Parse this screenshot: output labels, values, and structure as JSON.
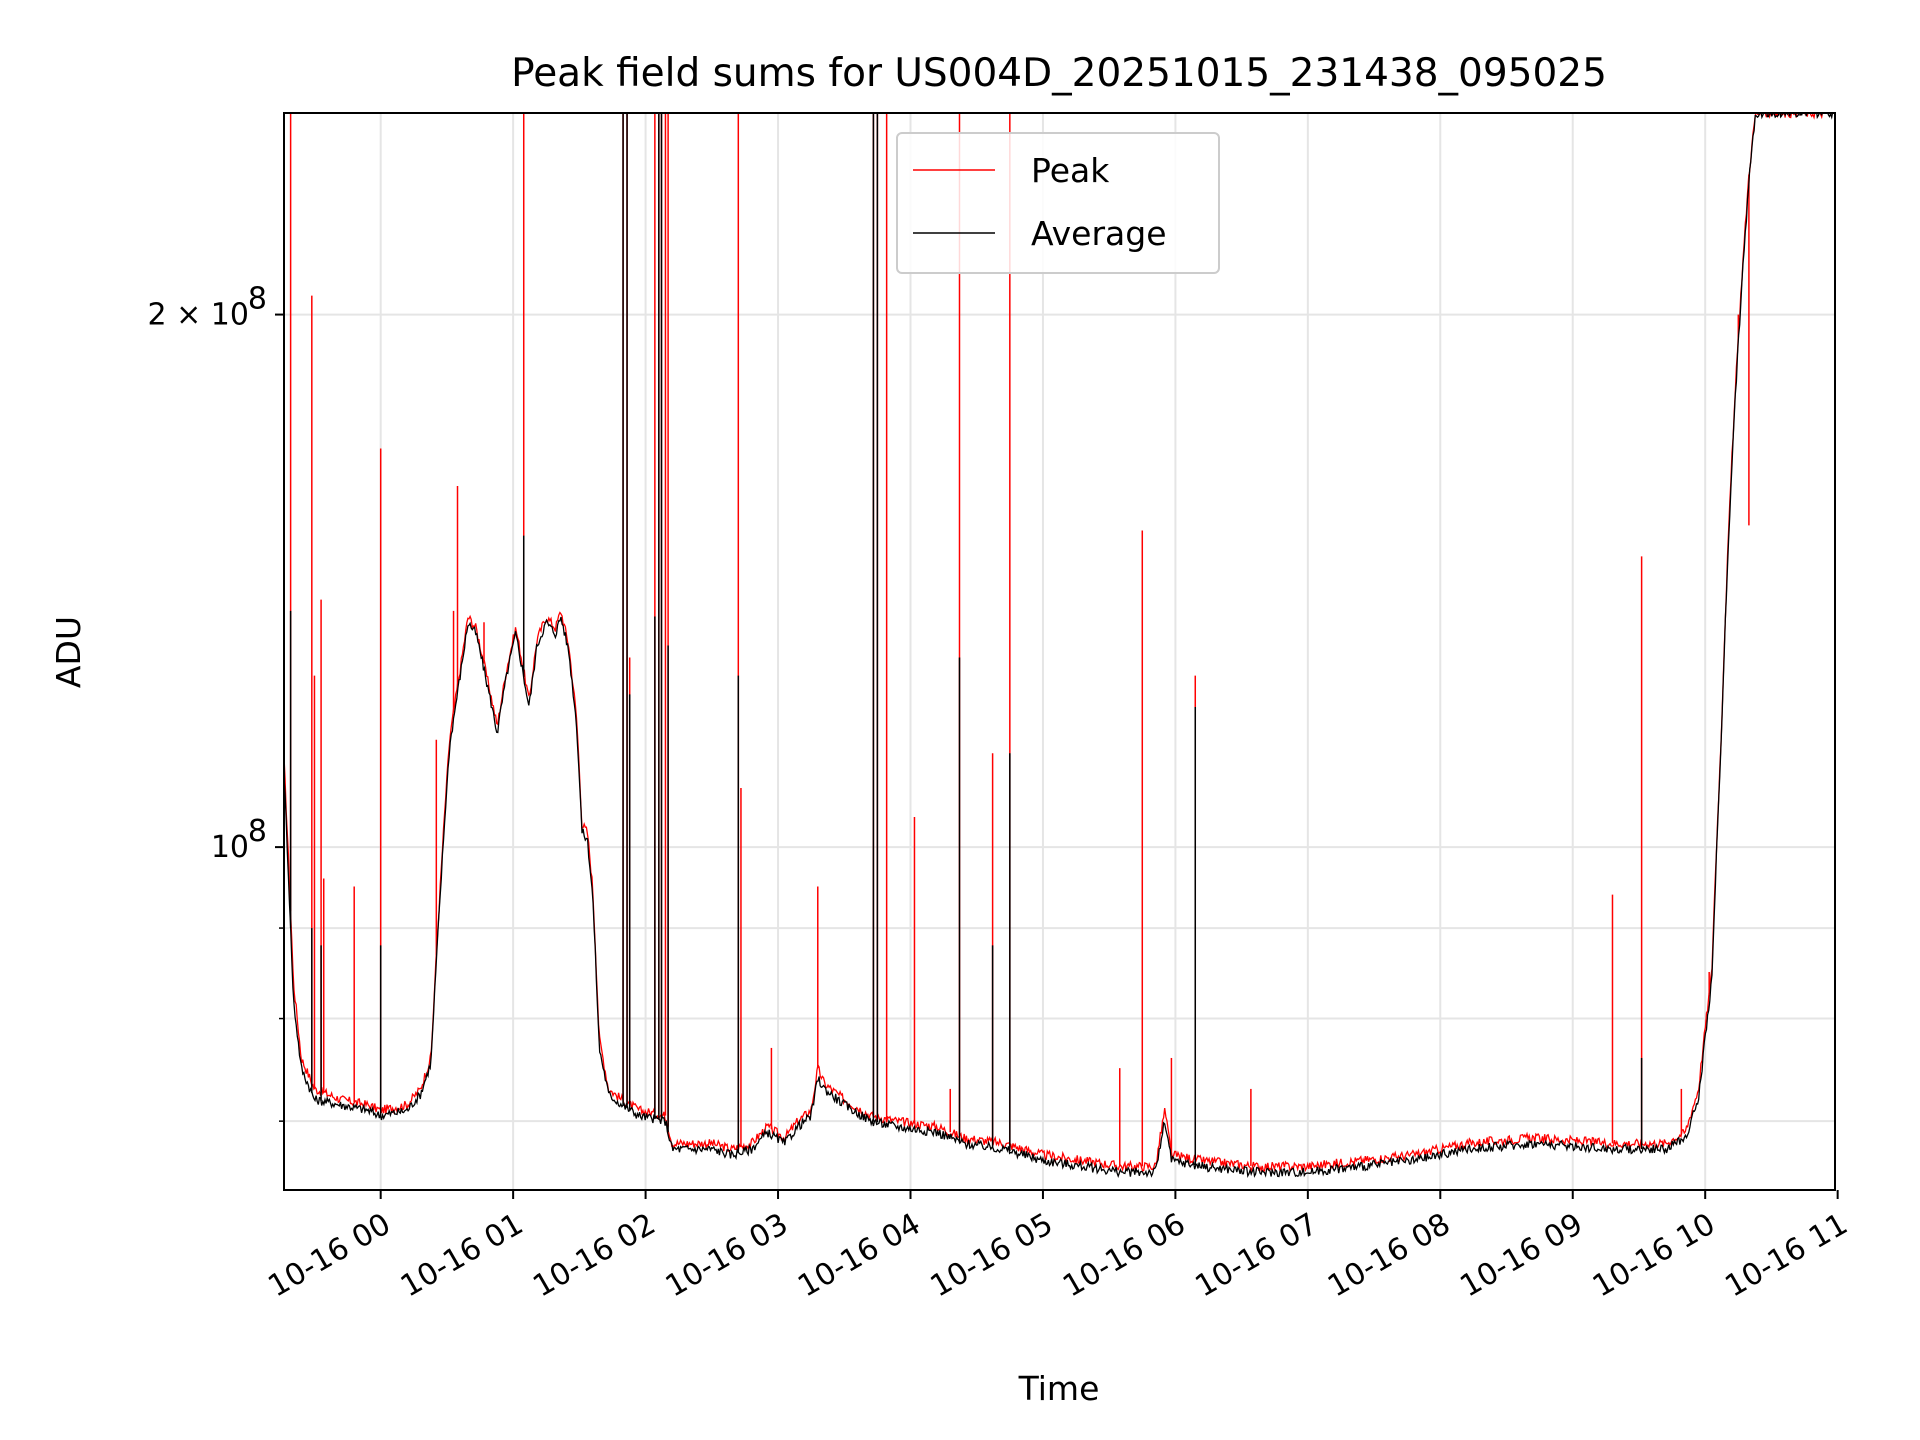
{
  "chart_data": {
    "type": "line",
    "title": "Peak field sums for US004D_20251015_231438_095025",
    "xlabel": "Time",
    "ylabel": "ADU",
    "yscale": "log",
    "grid": true,
    "legend_position": "top-center",
    "x_unit": "hours since 10-16 00:00",
    "xlim": [
      -0.73,
      10.98
    ],
    "ylim": [
      64000000,
      260000000
    ],
    "x_ticks": [
      0,
      1,
      2,
      3,
      4,
      5,
      6,
      7,
      8,
      9,
      10,
      11
    ],
    "x_tick_labels": [
      "10-16 00",
      "10-16 01",
      "10-16 02",
      "10-16 03",
      "10-16 04",
      "10-16 05",
      "10-16 06",
      "10-16 07",
      "10-16 08",
      "10-16 09",
      "10-16 10",
      "10-16 11"
    ],
    "y_major_ticks": [
      100000000,
      200000000
    ],
    "y_major_labels": [
      "10",
      "2 × 10"
    ],
    "y_major_exponent": "8",
    "y_minor_ticks": [
      70000000,
      80000000,
      90000000
    ],
    "series": [
      {
        "name": "Peak",
        "color": "#ff0000",
        "baseline": [
          [
            -0.73,
            112000000
          ],
          [
            -0.66,
            84000000
          ],
          [
            -0.6,
            76000000
          ],
          [
            -0.5,
            73000000
          ],
          [
            -0.3,
            72000000
          ],
          [
            -0.1,
            71500000
          ],
          [
            0.0,
            71000000
          ],
          [
            0.2,
            71500000
          ],
          [
            0.3,
            73000000
          ],
          [
            0.38,
            76000000
          ],
          [
            0.45,
            95000000
          ],
          [
            0.52,
            115000000
          ],
          [
            0.6,
            126000000
          ],
          [
            0.66,
            135000000
          ],
          [
            0.72,
            133000000
          ],
          [
            0.8,
            125000000
          ],
          [
            0.88,
            117000000
          ],
          [
            0.95,
            126000000
          ],
          [
            1.02,
            133000000
          ],
          [
            1.07,
            127000000
          ],
          [
            1.12,
            121000000
          ],
          [
            1.18,
            131000000
          ],
          [
            1.25,
            135000000
          ],
          [
            1.32,
            133000000
          ],
          [
            1.36,
            136000000
          ],
          [
            1.42,
            130000000
          ],
          [
            1.48,
            118000000
          ],
          [
            1.52,
            103000000
          ],
          [
            1.56,
            102000000
          ],
          [
            1.6,
            95000000
          ],
          [
            1.65,
            78000000
          ],
          [
            1.72,
            73000000
          ],
          [
            1.82,
            72000000
          ],
          [
            1.95,
            71000000
          ],
          [
            2.15,
            70500000
          ],
          [
            2.2,
            68000000
          ],
          [
            2.5,
            68000000
          ],
          [
            2.65,
            67500000
          ],
          [
            2.8,
            68000000
          ],
          [
            2.92,
            69500000
          ],
          [
            3.05,
            68500000
          ],
          [
            3.15,
            70000000
          ],
          [
            3.25,
            71000000
          ],
          [
            3.3,
            75000000
          ],
          [
            3.35,
            73500000
          ],
          [
            3.5,
            72000000
          ],
          [
            3.7,
            70500000
          ],
          [
            3.9,
            70000000
          ],
          [
            4.2,
            69500000
          ],
          [
            4.4,
            68500000
          ],
          [
            4.7,
            68000000
          ],
          [
            5.0,
            67000000
          ],
          [
            5.3,
            66500000
          ],
          [
            5.6,
            66000000
          ],
          [
            5.85,
            66000000
          ],
          [
            5.92,
            71000000
          ],
          [
            5.97,
            67000000
          ],
          [
            6.2,
            66500000
          ],
          [
            6.6,
            66000000
          ],
          [
            7.0,
            66000000
          ],
          [
            7.4,
            66500000
          ],
          [
            7.8,
            67000000
          ],
          [
            8.2,
            68000000
          ],
          [
            8.7,
            68500000
          ],
          [
            9.3,
            68000000
          ],
          [
            9.7,
            68000000
          ],
          [
            9.85,
            69000000
          ],
          [
            9.95,
            73000000
          ],
          [
            10.05,
            85000000
          ],
          [
            10.12,
            115000000
          ],
          [
            10.2,
            165000000
          ],
          [
            10.26,
            200000000
          ],
          [
            10.33,
            240000000
          ],
          [
            10.38,
            260000000
          ],
          [
            10.98,
            260000000
          ]
        ],
        "spikes": [
          [
            -0.68,
            260000000
          ],
          [
            -0.52,
            205000000
          ],
          [
            -0.5,
            125000000
          ],
          [
            -0.45,
            138000000
          ],
          [
            -0.43,
            96000000
          ],
          [
            -0.2,
            95000000
          ],
          [
            0.0,
            168000000
          ],
          [
            0.42,
            115000000
          ],
          [
            0.55,
            136000000
          ],
          [
            0.58,
            160000000
          ],
          [
            0.78,
            134000000
          ],
          [
            1.08,
            260000000
          ],
          [
            1.83,
            260000000
          ],
          [
            1.86,
            260000000
          ],
          [
            1.88,
            128000000
          ],
          [
            2.07,
            260000000
          ],
          [
            2.1,
            260000000
          ],
          [
            2.12,
            260000000
          ],
          [
            2.15,
            260000000
          ],
          [
            2.17,
            260000000
          ],
          [
            2.7,
            260000000
          ],
          [
            2.72,
            108000000
          ],
          [
            2.95,
            77000000
          ],
          [
            3.3,
            95000000
          ],
          [
            3.72,
            260000000
          ],
          [
            3.75,
            260000000
          ],
          [
            3.82,
            260000000
          ],
          [
            4.03,
            104000000
          ],
          [
            4.3,
            73000000
          ],
          [
            4.37,
            260000000
          ],
          [
            4.62,
            113000000
          ],
          [
            4.75,
            260000000
          ],
          [
            5.58,
            75000000
          ],
          [
            5.75,
            151000000
          ],
          [
            5.97,
            76000000
          ],
          [
            6.57,
            73000000
          ],
          [
            6.15,
            125000000
          ],
          [
            9.3,
            94000000
          ],
          [
            9.52,
            146000000
          ],
          [
            9.82,
            73000000
          ],
          [
            10.03,
            85000000
          ],
          [
            10.25,
            200000000
          ],
          [
            10.33,
            152000000
          ]
        ]
      },
      {
        "name": "Average",
        "color": "#000000",
        "baseline": [
          [
            -0.73,
            110000000
          ],
          [
            -0.66,
            82000000
          ],
          [
            -0.6,
            75000000
          ],
          [
            -0.5,
            72000000
          ],
          [
            -0.3,
            71500000
          ],
          [
            -0.1,
            71000000
          ],
          [
            0.0,
            70500000
          ],
          [
            0.2,
            71000000
          ],
          [
            0.3,
            72500000
          ],
          [
            0.38,
            75500000
          ],
          [
            0.45,
            94000000
          ],
          [
            0.52,
            114000000
          ],
          [
            0.6,
            125000000
          ],
          [
            0.66,
            134000000
          ],
          [
            0.72,
            132000000
          ],
          [
            0.8,
            124000000
          ],
          [
            0.88,
            116000000
          ],
          [
            0.95,
            125000000
          ],
          [
            1.02,
            132000000
          ],
          [
            1.07,
            126000000
          ],
          [
            1.12,
            120000000
          ],
          [
            1.18,
            130000000
          ],
          [
            1.25,
            134000000
          ],
          [
            1.32,
            132000000
          ],
          [
            1.36,
            135000000
          ],
          [
            1.42,
            129000000
          ],
          [
            1.48,
            117000000
          ],
          [
            1.52,
            102000000
          ],
          [
            1.56,
            101000000
          ],
          [
            1.6,
            94000000
          ],
          [
            1.65,
            77000000
          ],
          [
            1.72,
            72500000
          ],
          [
            1.82,
            71500000
          ],
          [
            1.95,
            70500000
          ],
          [
            2.15,
            70000000
          ],
          [
            2.2,
            67500000
          ],
          [
            2.5,
            67500000
          ],
          [
            2.65,
            67000000
          ],
          [
            2.8,
            67500000
          ],
          [
            2.92,
            69000000
          ],
          [
            3.05,
            68000000
          ],
          [
            3.15,
            69500000
          ],
          [
            3.25,
            70500000
          ],
          [
            3.3,
            74000000
          ],
          [
            3.35,
            73000000
          ],
          [
            3.5,
            71500000
          ],
          [
            3.7,
            70000000
          ],
          [
            3.9,
            69500000
          ],
          [
            4.2,
            69000000
          ],
          [
            4.4,
            68000000
          ],
          [
            4.7,
            67500000
          ],
          [
            5.0,
            66500000
          ],
          [
            5.3,
            66000000
          ],
          [
            5.6,
            65500000
          ],
          [
            5.85,
            65500000
          ],
          [
            5.92,
            70000000
          ],
          [
            5.97,
            66500000
          ],
          [
            6.2,
            66000000
          ],
          [
            6.6,
            65500000
          ],
          [
            7.0,
            65500000
          ],
          [
            7.4,
            66000000
          ],
          [
            7.8,
            66500000
          ],
          [
            8.2,
            67500000
          ],
          [
            8.7,
            68000000
          ],
          [
            9.3,
            67500000
          ],
          [
            9.7,
            67500000
          ],
          [
            9.85,
            68500000
          ],
          [
            9.95,
            72000000
          ],
          [
            10.05,
            84000000
          ],
          [
            10.12,
            114000000
          ],
          [
            10.2,
            164000000
          ],
          [
            10.26,
            198000000
          ],
          [
            10.33,
            238000000
          ],
          [
            10.38,
            260000000
          ],
          [
            10.98,
            260000000
          ]
        ],
        "spikes": [
          [
            -0.68,
            136000000
          ],
          [
            -0.52,
            90000000
          ],
          [
            -0.45,
            88000000
          ],
          [
            0.0,
            88000000
          ],
          [
            1.08,
            150000000
          ],
          [
            1.83,
            260000000
          ],
          [
            1.86,
            260000000
          ],
          [
            1.88,
            122000000
          ],
          [
            2.07,
            135000000
          ],
          [
            2.1,
            260000000
          ],
          [
            2.12,
            260000000
          ],
          [
            2.17,
            130000000
          ],
          [
            2.7,
            125000000
          ],
          [
            3.72,
            260000000
          ],
          [
            3.75,
            260000000
          ],
          [
            4.37,
            128000000
          ],
          [
            4.62,
            88000000
          ],
          [
            4.75,
            113000000
          ],
          [
            6.15,
            120000000
          ],
          [
            9.52,
            76000000
          ]
        ]
      }
    ]
  }
}
